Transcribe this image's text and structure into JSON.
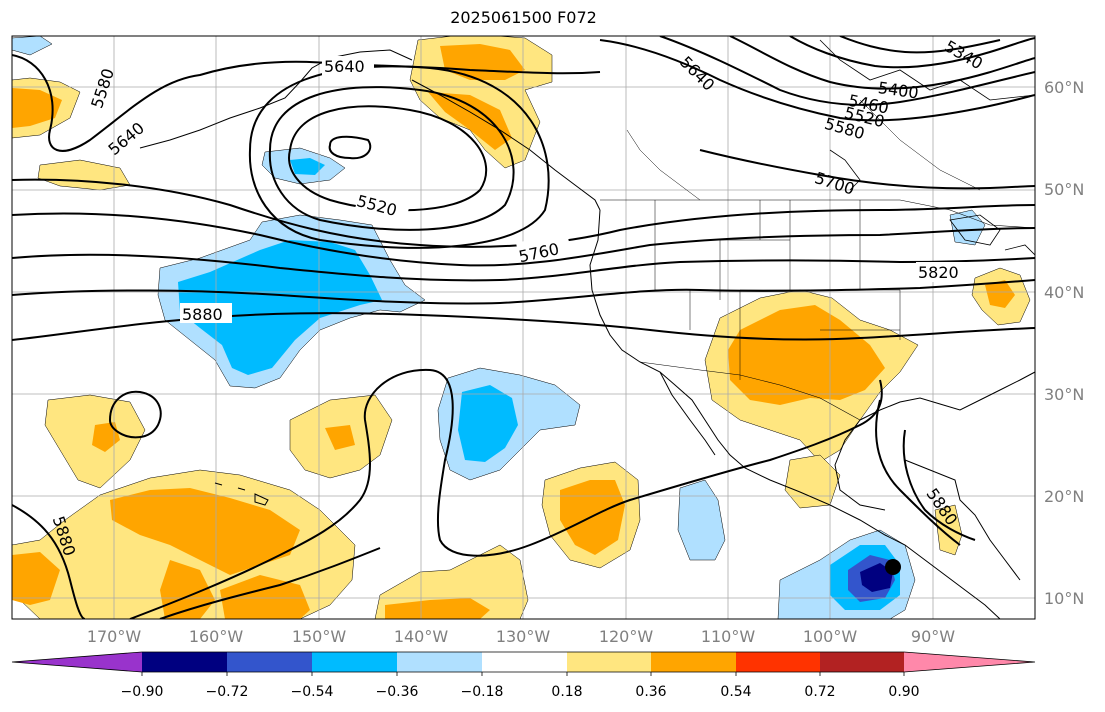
{
  "title": "2025061500 F072",
  "map": {
    "lon_labels": [
      "170°W",
      "160°W",
      "150°W",
      "140°W",
      "130°W",
      "120°W",
      "110°W",
      "100°W",
      "90°W"
    ],
    "lat_labels": [
      "60°N",
      "50°N",
      "40°N",
      "30°N",
      "20°N",
      "10°N"
    ],
    "lon_range": [
      -180,
      -80
    ],
    "lat_range": [
      8,
      65
    ],
    "gridlines": true
  },
  "contour_labels": [
    "5640",
    "5580",
    "5640",
    "5520",
    "5760",
    "5880",
    "5640",
    "5400",
    "5340",
    "5460",
    "5520",
    "5580",
    "5700",
    "5820",
    "5880",
    "5880"
  ],
  "colorbar": {
    "tick_labels": [
      "−0.90",
      "−0.72",
      "−0.54",
      "−0.36",
      "−0.18",
      "0.18",
      "0.36",
      "0.54",
      "0.72",
      "0.90"
    ],
    "colors": [
      "#9933cc",
      "#000080",
      "#3355cc",
      "#00bbff",
      "#b0e0ff",
      "#ffffff",
      "#ffe680",
      "#ffa500",
      "#ff3300",
      "#b22222",
      "#ff88aa"
    ]
  }
}
